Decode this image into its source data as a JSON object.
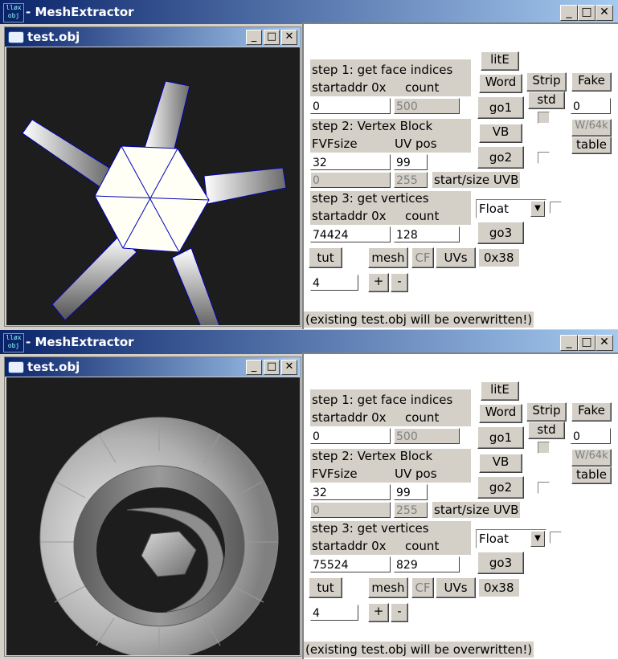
{
  "app": {
    "title": "MeshExtractor",
    "title_prefix": "- ",
    "icon_text": "lløx\nobj",
    "min": "_",
    "max": "□",
    "close": "✕"
  },
  "child": {
    "title": "test.obj"
  },
  "labels": {
    "step1": "step 1: get face indices",
    "startaddr": "startaddr 0x",
    "count": "count",
    "step2": "step 2: Vertex Block",
    "fvfsize": "FVFsize",
    "uvpos": "UV pos",
    "startsize_uvb": "start/size UVB",
    "step3": "step 3: get vertices",
    "hex": "0x38",
    "overwrite": "(existing test.obj will be overwritten!)"
  },
  "buttons": {
    "lite": "litE",
    "word": "Word",
    "strip": "Strip",
    "fake": "Fake",
    "go1": "go1",
    "std": "std",
    "vb": "VB",
    "w64k": "W/64k",
    "table": "table",
    "go2": "go2",
    "go3": "go3",
    "tut": "tut",
    "mesh": "mesh",
    "cf": "CF",
    "uvs": "UVs",
    "plus": "+",
    "minus": "-"
  },
  "combo": {
    "value": "Float",
    "arrow": "▼"
  },
  "w1": {
    "face_start": "0",
    "face_count": "500",
    "fake_value": "0",
    "fvfsize": "32",
    "uvpos": "99",
    "uvb_start": "0",
    "uvb_size": "255",
    "vert_start": "74424",
    "vert_count": "128",
    "step_value": "4"
  },
  "w2": {
    "face_start": "0",
    "face_count": "500",
    "fake_value": "0",
    "fvfsize": "32",
    "uvpos": "99",
    "uvb_start": "0",
    "uvb_size": "255",
    "vert_start": "75524",
    "vert_count": "829",
    "step_value": "4"
  }
}
